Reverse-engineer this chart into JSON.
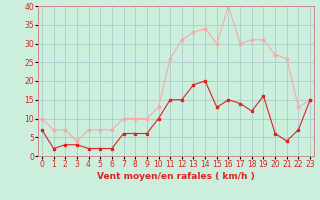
{
  "x": [
    0,
    1,
    2,
    3,
    4,
    5,
    6,
    7,
    8,
    9,
    10,
    11,
    12,
    13,
    14,
    15,
    16,
    17,
    18,
    19,
    20,
    21,
    22,
    23
  ],
  "wind_avg": [
    7,
    2,
    3,
    3,
    2,
    2,
    2,
    6,
    6,
    6,
    10,
    15,
    15,
    19,
    20,
    13,
    15,
    14,
    12,
    16,
    6,
    4,
    7,
    15
  ],
  "wind_gust": [
    10,
    7,
    7,
    4,
    7,
    7,
    7,
    10,
    10,
    10,
    13,
    26,
    31,
    33,
    34,
    30,
    40,
    30,
    31,
    31,
    27,
    26,
    13,
    15
  ],
  "line_avg_color": "#dd2222",
  "line_gust_color": "#f4aaaa",
  "bg_color": "#cceedd",
  "grid_color": "#aacccc",
  "text_color": "#dd2222",
  "spine_color": "#cc8888",
  "xlabel": "Vent moyen/en rafales ( km/h )",
  "ylim": [
    0,
    40
  ],
  "yticks": [
    0,
    5,
    10,
    15,
    20,
    25,
    30,
    35,
    40
  ],
  "label_fontsize": 6.5,
  "tick_fontsize": 5.5
}
